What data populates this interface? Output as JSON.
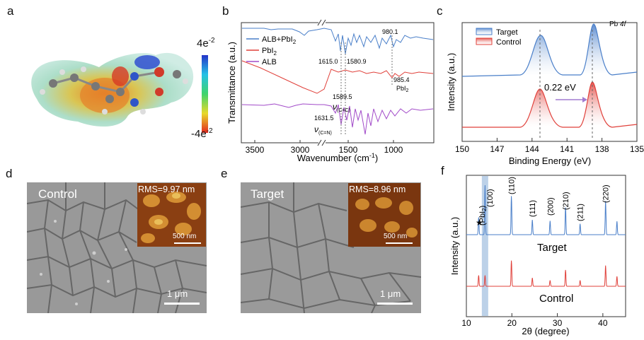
{
  "panel_labels": {
    "a": "a",
    "b": "b",
    "c": "c",
    "d": "d",
    "e": "e",
    "f": "f"
  },
  "panel_a": {
    "colorbar_max": "4e",
    "colorbar_max_exp": "-2",
    "colorbar_min": "-4e",
    "colorbar_min_exp": "-2"
  },
  "chart_data": [
    {
      "type": "line",
      "panel": "b",
      "xlabel": "Wavenumber (cm",
      "xlabel_sup": "-1",
      "xlabel_end": ")",
      "ylabel": "Transmittance (a.u.)",
      "xticks": [
        "3500",
        "3000",
        "1500",
        "1000"
      ],
      "series": [
        {
          "name": "ALB+PbI",
          "sub": "2",
          "color": "#4a7fc9"
        },
        {
          "name": "PbI",
          "sub": "2",
          "color": "#e0403a"
        },
        {
          "name": "ALB",
          "sub": "",
          "color": "#a24bc9"
        }
      ],
      "annotations": {
        "a1": "980.1",
        "a2": "1615.0",
        "a3": "1580.9",
        "a4": "985.4",
        "a5": "PbI",
        "a5sub": "2",
        "a6": "1589.5",
        "a7": "ν",
        "a7sub": "(C=C)",
        "a8": "1631.5",
        "a9": "ν",
        "a9sub": "(C=N)"
      }
    },
    {
      "type": "line",
      "panel": "c",
      "title": "Pb 4f",
      "title_main": "Pb ",
      "title_ital": "4f",
      "xlabel": "Binding Energy (eV)",
      "ylabel": "Intensity (a.u.)",
      "xlim": [
        150,
        135
      ],
      "xticks": [
        "150",
        "147",
        "144",
        "141",
        "138",
        "135"
      ],
      "series": [
        {
          "name": "Target",
          "color": "#4a7fc9",
          "peaks": [
            143.2,
            138.4
          ]
        },
        {
          "name": "Control",
          "color": "#e0403a",
          "peaks": [
            143.4,
            138.6
          ]
        }
      ],
      "shift_label": "0.22 eV"
    },
    {
      "type": "line",
      "panel": "f",
      "xlabel": "2θ (degree)",
      "ylabel": "Intensity (a.u.)",
      "xlim": [
        10,
        45
      ],
      "xticks": [
        "10",
        "20",
        "30",
        "40"
      ],
      "series": [
        {
          "name": "Target",
          "color": "#4a7fc9"
        },
        {
          "name": "Control",
          "color": "#e0403a"
        }
      ],
      "peak_labels": [
        {
          "label": "(110)",
          "x": 19.9
        },
        {
          "label": "(111)",
          "x": 24.5
        },
        {
          "label": "(200)",
          "x": 28.4
        },
        {
          "label": "(210)",
          "x": 31.8
        },
        {
          "label": "(211)",
          "x": 35.0
        },
        {
          "label": "(220)",
          "x": 40.6
        }
      ],
      "extra_labels": {
        "star": "★",
        "pbi2": "(PbI",
        "pbi2sub": "2",
        "pbi2end": ")",
        "p100": "(100)"
      }
    }
  ],
  "panel_d": {
    "title": "Control",
    "rms": "RMS=9.97 nm",
    "inset_scale": "500 nm",
    "scale": "1 μm"
  },
  "panel_e": {
    "title": "Target",
    "rms": "RMS=8.96 nm",
    "inset_scale": "500 nm",
    "scale": "1 μm"
  }
}
